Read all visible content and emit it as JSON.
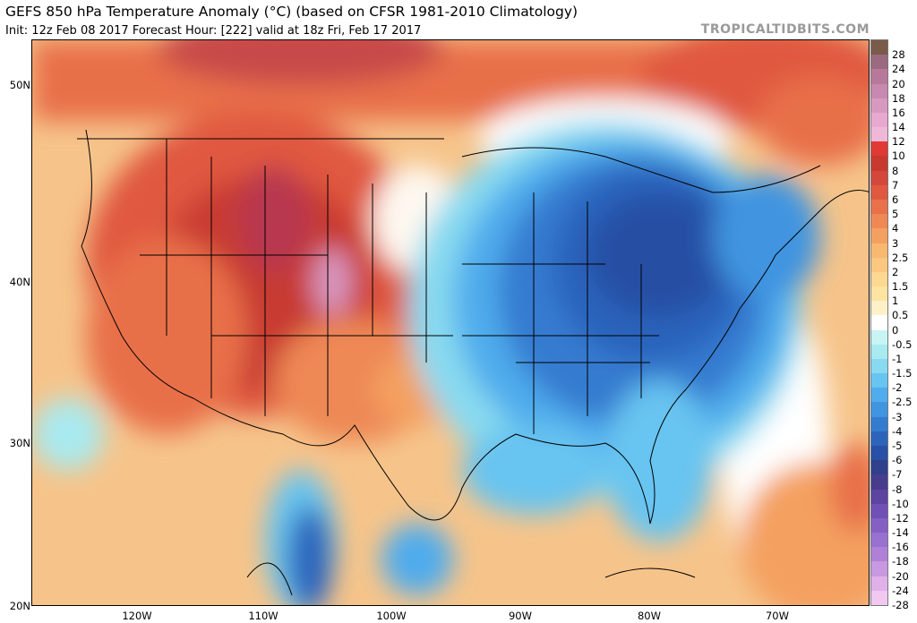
{
  "header": {
    "title": "GEFS 850 hPa Temperature Anomaly (°C) (based on CFSR 1981-2010 Climatology)",
    "subtitle": "Init: 12z Feb 08 2017   Forecast Hour: [222]   valid at 18z Fri, Feb 17 2017",
    "brand": "TROPICALTIDBITS.COM"
  },
  "axes": {
    "lat_labels": [
      "50N",
      "40N",
      "30N",
      "20N"
    ],
    "lon_labels": [
      "120W",
      "110W",
      "100W",
      "90W",
      "80W",
      "70W"
    ]
  },
  "colorbar": {
    "labels": [
      "28",
      "24",
      "20",
      "18",
      "16",
      "14",
      "12",
      "10",
      "8",
      "7",
      "6",
      "5",
      "4",
      "3",
      "2.5",
      "2",
      "1.5",
      "1",
      "0.5",
      "0",
      "-0.5",
      "-1",
      "-1.5",
      "-2",
      "-2.5",
      "-3",
      "-4",
      "-5",
      "-6",
      "-7",
      "-8",
      "-10",
      "-12",
      "-14",
      "-16",
      "-18",
      "-20",
      "-24",
      "-28"
    ],
    "colors": [
      "#7a5a48",
      "#9a6a80",
      "#b8789a",
      "#c888b0",
      "#d898c0",
      "#e8a8d0",
      "#f0b8d8",
      "#e03a34",
      "#c83a30",
      "#d4483c",
      "#e05840",
      "#e8704a",
      "#ee8854",
      "#f4a060",
      "#f8b870",
      "#fac880",
      "#fcd890",
      "#fde4a0",
      "#fef0c8",
      "#ffffff",
      "#c8f4f4",
      "#a8eaf0",
      "#88daf0",
      "#68c4f0",
      "#50acec",
      "#4094e0",
      "#347cd0",
      "#2c64bc",
      "#2850a4",
      "#30408c",
      "#483c8c",
      "#5c44a0",
      "#7050b4",
      "#8460c4",
      "#9870d0",
      "#b080d8",
      "#c898e0",
      "#e0b0e8",
      "#f0c8f0"
    ]
  },
  "map": {
    "region": "Contiguous United States, southern Canada, Mexico, western Atlantic",
    "pattern": "warm anomalies west and north, cold anomaly east",
    "warm_color": "#d4483c",
    "cold_color": "#2850a4"
  }
}
